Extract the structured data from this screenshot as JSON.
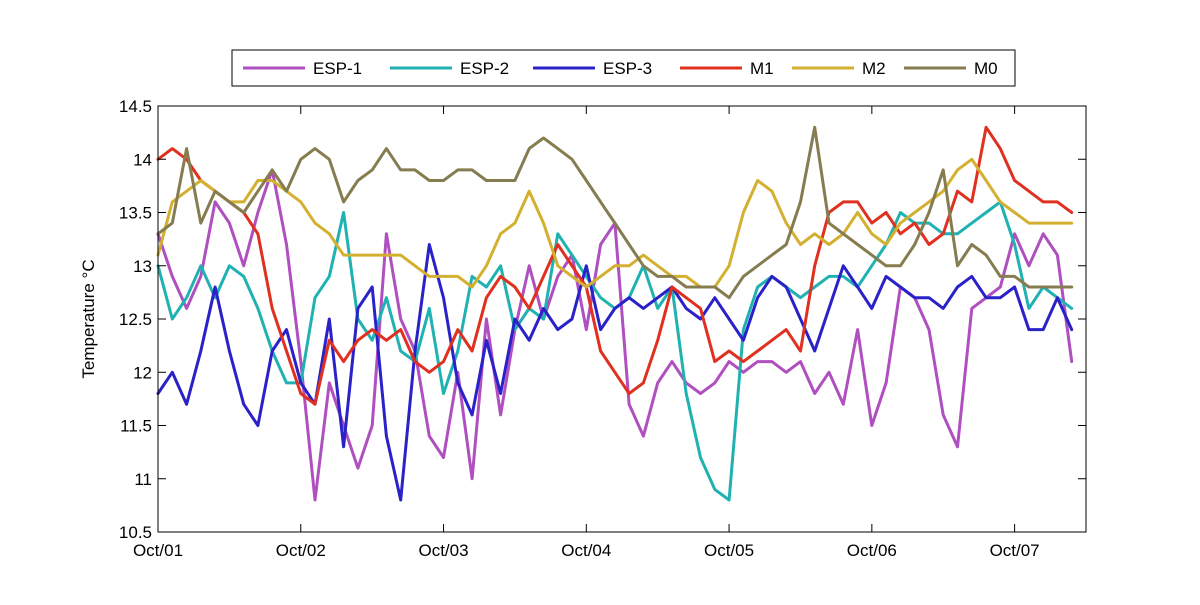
{
  "chart_data": {
    "type": "line",
    "title": "",
    "xlabel": "",
    "ylabel": "Temperature °C",
    "x_unit": "days since Oct/01 00:00",
    "xlim": [
      0,
      6.5
    ],
    "ylim": [
      10.5,
      14.5
    ],
    "x_ticks": [
      {
        "value": 0,
        "label": "Oct/01"
      },
      {
        "value": 1,
        "label": "Oct/02"
      },
      {
        "value": 2,
        "label": "Oct/03"
      },
      {
        "value": 3,
        "label": "Oct/04"
      },
      {
        "value": 4,
        "label": "Oct/05"
      },
      {
        "value": 5,
        "label": "Oct/06"
      },
      {
        "value": 6,
        "label": "Oct/07"
      }
    ],
    "y_ticks": [
      10.5,
      11,
      11.5,
      12,
      12.5,
      13,
      13.5,
      14,
      14.5
    ],
    "grid": false,
    "legend_position": "top-center",
    "series": [
      {
        "name": "ESP-1",
        "color": "#b04fbf",
        "x": [
          0,
          0.1,
          0.2,
          0.3,
          0.4,
          0.5,
          0.6,
          0.7,
          0.8,
          0.9,
          1.0,
          1.1,
          1.2,
          1.3,
          1.4,
          1.5,
          1.6,
          1.7,
          1.8,
          1.9,
          2.0,
          2.1,
          2.2,
          2.3,
          2.4,
          2.5,
          2.6,
          2.7,
          2.8,
          2.9,
          3.0,
          3.1,
          3.2,
          3.3,
          3.4,
          3.5,
          3.6,
          3.7,
          3.8,
          3.9,
          4.0,
          4.1,
          4.2,
          4.3,
          4.4,
          4.5,
          4.6,
          4.7,
          4.8,
          4.9,
          5.0,
          5.1,
          5.2,
          5.3,
          5.4,
          5.5,
          5.6,
          5.7,
          5.8,
          5.9,
          6.0,
          6.1,
          6.2,
          6.3,
          6.4
        ],
        "y": [
          13.3,
          12.9,
          12.6,
          12.9,
          13.6,
          13.4,
          13.0,
          13.5,
          13.9,
          13.2,
          12.1,
          10.8,
          11.9,
          11.5,
          11.1,
          11.5,
          13.3,
          12.5,
          12.2,
          11.4,
          11.2,
          12.0,
          11.0,
          12.5,
          11.6,
          12.4,
          13.0,
          12.5,
          12.9,
          13.1,
          12.4,
          13.2,
          13.4,
          11.7,
          11.4,
          11.9,
          12.1,
          11.9,
          11.8,
          11.9,
          12.1,
          12.0,
          12.1,
          12.1,
          12.0,
          12.1,
          11.8,
          12.0,
          11.7,
          12.4,
          11.5,
          11.9,
          12.8,
          12.7,
          12.4,
          11.6,
          11.3,
          12.6,
          12.7,
          12.8,
          13.3,
          13.0,
          13.3,
          13.1,
          12.1
        ]
      },
      {
        "name": "ESP-2",
        "color": "#20b2b2",
        "x": [
          0,
          0.1,
          0.2,
          0.3,
          0.4,
          0.5,
          0.6,
          0.7,
          0.8,
          0.9,
          1.0,
          1.1,
          1.2,
          1.3,
          1.4,
          1.5,
          1.6,
          1.7,
          1.8,
          1.9,
          2.0,
          2.1,
          2.2,
          2.3,
          2.4,
          2.5,
          2.6,
          2.7,
          2.8,
          2.9,
          3.0,
          3.1,
          3.2,
          3.3,
          3.4,
          3.5,
          3.6,
          3.7,
          3.8,
          3.9,
          4.0,
          4.1,
          4.2,
          4.3,
          4.4,
          4.5,
          4.6,
          4.7,
          4.8,
          4.9,
          5.0,
          5.1,
          5.2,
          5.3,
          5.4,
          5.5,
          5.6,
          5.7,
          5.8,
          5.9,
          6.0,
          6.1,
          6.2,
          6.3,
          6.4
        ],
        "y": [
          13.0,
          12.5,
          12.7,
          13.0,
          12.7,
          13.0,
          12.9,
          12.6,
          12.2,
          11.9,
          11.9,
          12.7,
          12.9,
          13.5,
          12.5,
          12.3,
          12.7,
          12.2,
          12.1,
          12.6,
          11.8,
          12.2,
          12.9,
          12.8,
          13.0,
          12.4,
          12.6,
          12.5,
          13.3,
          13.1,
          12.9,
          12.7,
          12.6,
          12.7,
          13.0,
          12.6,
          12.8,
          11.8,
          11.2,
          10.9,
          10.8,
          12.4,
          12.8,
          12.9,
          12.8,
          12.7,
          12.8,
          12.9,
          12.9,
          12.8,
          13.0,
          13.2,
          13.5,
          13.4,
          13.4,
          13.3,
          13.3,
          13.4,
          13.5,
          13.6,
          13.2,
          12.6,
          12.8,
          12.7,
          12.6
        ]
      },
      {
        "name": "ESP-3",
        "color": "#2a22c8",
        "x": [
          0,
          0.1,
          0.2,
          0.3,
          0.4,
          0.5,
          0.6,
          0.7,
          0.8,
          0.9,
          1.0,
          1.1,
          1.2,
          1.3,
          1.4,
          1.5,
          1.6,
          1.7,
          1.8,
          1.9,
          2.0,
          2.1,
          2.2,
          2.3,
          2.4,
          2.5,
          2.6,
          2.7,
          2.8,
          2.9,
          3.0,
          3.1,
          3.2,
          3.3,
          3.4,
          3.5,
          3.6,
          3.7,
          3.8,
          3.9,
          4.0,
          4.1,
          4.2,
          4.3,
          4.4,
          4.5,
          4.6,
          4.7,
          4.8,
          4.9,
          5.0,
          5.1,
          5.2,
          5.3,
          5.4,
          5.5,
          5.6,
          5.7,
          5.8,
          5.9,
          6.0,
          6.1,
          6.2,
          6.3,
          6.4
        ],
        "y": [
          11.8,
          12.0,
          11.7,
          12.2,
          12.8,
          12.2,
          11.7,
          11.5,
          12.2,
          12.4,
          11.9,
          11.7,
          12.5,
          11.3,
          12.6,
          12.8,
          11.4,
          10.8,
          12.2,
          13.2,
          12.7,
          11.9,
          11.6,
          12.3,
          11.8,
          12.5,
          12.3,
          12.6,
          12.4,
          12.5,
          13.0,
          12.4,
          12.6,
          12.7,
          12.6,
          12.7,
          12.8,
          12.6,
          12.5,
          12.7,
          12.5,
          12.3,
          12.7,
          12.9,
          12.8,
          12.5,
          12.2,
          12.6,
          13.0,
          12.8,
          12.6,
          12.9,
          12.8,
          12.7,
          12.7,
          12.6,
          12.8,
          12.9,
          12.7,
          12.7,
          12.8,
          12.4,
          12.4,
          12.7,
          12.4
        ]
      },
      {
        "name": "M1",
        "color": "#e03020",
        "x": [
          0,
          0.1,
          0.2,
          0.3,
          0.4,
          0.5,
          0.6,
          0.7,
          0.8,
          0.9,
          1.0,
          1.1,
          1.2,
          1.3,
          1.4,
          1.5,
          1.6,
          1.7,
          1.8,
          1.9,
          2.0,
          2.1,
          2.2,
          2.3,
          2.4,
          2.5,
          2.6,
          2.7,
          2.8,
          2.9,
          3.0,
          3.1,
          3.2,
          3.3,
          3.4,
          3.5,
          3.6,
          3.7,
          3.8,
          3.9,
          4.0,
          4.1,
          4.2,
          4.3,
          4.4,
          4.5,
          4.6,
          4.7,
          4.8,
          4.9,
          5.0,
          5.1,
          5.2,
          5.3,
          5.4,
          5.5,
          5.6,
          5.7,
          5.8,
          5.9,
          6.0,
          6.1,
          6.2,
          6.3,
          6.4
        ],
        "y": [
          14.0,
          14.1,
          14.0,
          13.8,
          13.7,
          13.6,
          13.5,
          13.3,
          12.6,
          12.2,
          11.8,
          11.7,
          12.3,
          12.1,
          12.3,
          12.4,
          12.3,
          12.4,
          12.1,
          12.0,
          12.1,
          12.4,
          12.2,
          12.7,
          12.9,
          12.8,
          12.6,
          12.9,
          13.2,
          13.0,
          12.8,
          12.2,
          12.0,
          11.8,
          11.9,
          12.3,
          12.8,
          12.7,
          12.6,
          12.1,
          12.2,
          12.1,
          12.2,
          12.3,
          12.4,
          12.2,
          13.0,
          13.5,
          13.6,
          13.6,
          13.4,
          13.5,
          13.3,
          13.4,
          13.2,
          13.3,
          13.7,
          13.6,
          14.3,
          14.1,
          13.8,
          13.7,
          13.6,
          13.6,
          13.5
        ]
      },
      {
        "name": "M2",
        "color": "#d4b030",
        "x": [
          0,
          0.1,
          0.2,
          0.3,
          0.4,
          0.5,
          0.6,
          0.7,
          0.8,
          0.9,
          1.0,
          1.1,
          1.2,
          1.3,
          1.4,
          1.5,
          1.6,
          1.7,
          1.8,
          1.9,
          2.0,
          2.1,
          2.2,
          2.3,
          2.4,
          2.5,
          2.6,
          2.7,
          2.8,
          2.9,
          3.0,
          3.1,
          3.2,
          3.3,
          3.4,
          3.5,
          3.6,
          3.7,
          3.8,
          3.9,
          4.0,
          4.1,
          4.2,
          4.3,
          4.4,
          4.5,
          4.6,
          4.7,
          4.8,
          4.9,
          5.0,
          5.1,
          5.2,
          5.3,
          5.4,
          5.5,
          5.6,
          5.7,
          5.8,
          5.9,
          6.0,
          6.1,
          6.2,
          6.3,
          6.4
        ],
        "y": [
          13.1,
          13.6,
          13.7,
          13.8,
          13.7,
          13.6,
          13.6,
          13.8,
          13.8,
          13.7,
          13.6,
          13.4,
          13.3,
          13.1,
          13.1,
          13.1,
          13.1,
          13.1,
          13.0,
          12.9,
          12.9,
          12.9,
          12.8,
          13.0,
          13.3,
          13.4,
          13.7,
          13.4,
          13.0,
          12.9,
          12.8,
          12.9,
          13.0,
          13.0,
          13.1,
          13.0,
          12.9,
          12.9,
          12.8,
          12.8,
          13.0,
          13.5,
          13.8,
          13.7,
          13.4,
          13.2,
          13.3,
          13.2,
          13.3,
          13.5,
          13.3,
          13.2,
          13.4,
          13.5,
          13.6,
          13.7,
          13.9,
          14.0,
          13.8,
          13.6,
          13.5,
          13.4,
          13.4,
          13.4,
          13.4
        ]
      },
      {
        "name": "M0",
        "color": "#857c50",
        "x": [
          0,
          0.1,
          0.2,
          0.3,
          0.4,
          0.5,
          0.6,
          0.7,
          0.8,
          0.9,
          1.0,
          1.1,
          1.2,
          1.3,
          1.4,
          1.5,
          1.6,
          1.7,
          1.8,
          1.9,
          2.0,
          2.1,
          2.2,
          2.3,
          2.4,
          2.5,
          2.6,
          2.7,
          2.8,
          2.9,
          3.0,
          3.1,
          3.2,
          3.3,
          3.4,
          3.5,
          3.6,
          3.7,
          3.8,
          3.9,
          4.0,
          4.1,
          4.2,
          4.3,
          4.4,
          4.5,
          4.6,
          4.7,
          4.8,
          4.9,
          5.0,
          5.1,
          5.2,
          5.3,
          5.4,
          5.5,
          5.6,
          5.7,
          5.8,
          5.9,
          6.0,
          6.1,
          6.2,
          6.3,
          6.4
        ],
        "y": [
          13.3,
          13.4,
          14.1,
          13.4,
          13.7,
          13.6,
          13.5,
          13.7,
          13.9,
          13.7,
          14.0,
          14.1,
          14.0,
          13.6,
          13.8,
          13.9,
          14.1,
          13.9,
          13.9,
          13.8,
          13.8,
          13.9,
          13.9,
          13.8,
          13.8,
          13.8,
          14.1,
          14.2,
          14.1,
          14.0,
          13.8,
          13.6,
          13.4,
          13.2,
          13.0,
          12.9,
          12.9,
          12.8,
          12.8,
          12.8,
          12.7,
          12.9,
          13.0,
          13.1,
          13.2,
          13.6,
          14.3,
          13.4,
          13.3,
          13.2,
          13.1,
          13.0,
          13.0,
          13.2,
          13.5,
          13.9,
          13.0,
          13.2,
          13.1,
          12.9,
          12.9,
          12.8,
          12.8,
          12.8,
          12.8
        ]
      }
    ]
  }
}
